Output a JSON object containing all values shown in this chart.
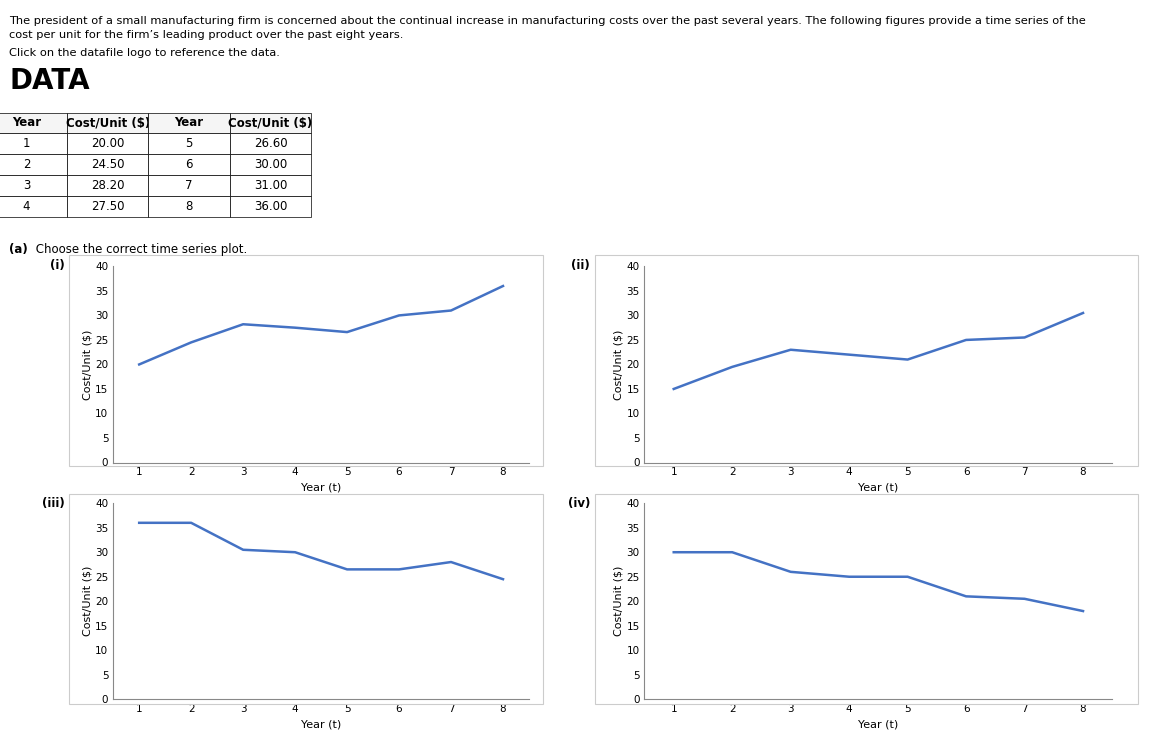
{
  "title_line1": "The president of a small manufacturing firm is concerned about the continual increase in manufacturing costs over the past several years. The following figures provide a time series of the",
  "title_line2": "cost per unit for the firm’s leading product over the past eight years.",
  "subtitle_text": "Click on the datafile logo to reference the data.",
  "years": [
    1,
    2,
    3,
    4,
    5,
    6,
    7,
    8
  ],
  "graph_i_data": [
    20.0,
    24.5,
    28.2,
    27.5,
    26.6,
    30.0,
    31.0,
    36.0
  ],
  "graph_ii_data": [
    15.0,
    19.5,
    23.0,
    22.0,
    21.0,
    25.0,
    25.5,
    30.5
  ],
  "graph_iii_data": [
    36.0,
    36.0,
    30.5,
    30.0,
    26.5,
    26.5,
    28.0,
    24.5
  ],
  "graph_iv_data": [
    30.0,
    30.0,
    26.0,
    25.0,
    25.0,
    21.0,
    20.5,
    18.0
  ],
  "line_color": "#4472C4",
  "background_color": "#ffffff",
  "ylim": [
    0,
    40
  ],
  "yticks": [
    0,
    5,
    10,
    15,
    20,
    25,
    30,
    35,
    40
  ],
  "xticks": [
    1,
    2,
    3,
    4,
    5,
    6,
    7,
    8
  ],
  "xlabel": "Year (t)",
  "ylabel": "Cost/Unit ($)",
  "part_a_label_bold": "(a)",
  "part_a_label_rest": " Choose the correct time series plot.",
  "table_headers": [
    "Year",
    "Cost/Unit ($)",
    "Year",
    "Cost/Unit ($)"
  ],
  "table_data": [
    [
      1,
      20.0,
      5,
      26.6
    ],
    [
      2,
      24.5,
      6,
      30.0
    ],
    [
      3,
      28.2,
      7,
      31.0
    ],
    [
      4,
      27.5,
      8,
      36.0
    ]
  ],
  "data_word_color": "#000000",
  "file_box_color": "#3399CC",
  "file_text_color": "#ffffff",
  "border_color": "#cccccc",
  "graph_labels": [
    "(i)",
    "(ii)",
    "(iii)",
    "(iv)"
  ]
}
